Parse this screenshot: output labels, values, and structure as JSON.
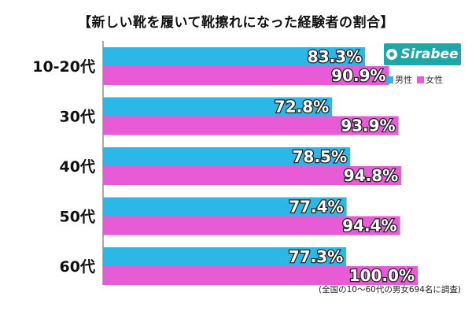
{
  "chart_data": {
    "type": "bar",
    "orientation": "horizontal",
    "title": "【新しい靴を履いて靴擦れになった経験者の割合】",
    "categories": [
      "10-20代",
      "30代",
      "40代",
      "50代",
      "60代"
    ],
    "series": [
      {
        "name": "男性",
        "color": "#2cb8e6",
        "values": [
          83.3,
          72.8,
          78.5,
          77.4,
          77.3
        ]
      },
      {
        "name": "女性",
        "color": "#e85bd6",
        "values": [
          90.9,
          93.9,
          94.8,
          94.4,
          100.0
        ]
      }
    ],
    "xlim": [
      0,
      100
    ],
    "value_suffix": "%",
    "grid": false,
    "legend_position": "top-right"
  },
  "brand": {
    "name": "Sirabee"
  },
  "footnote": "(全国の10～60代の男女694名に調査)"
}
